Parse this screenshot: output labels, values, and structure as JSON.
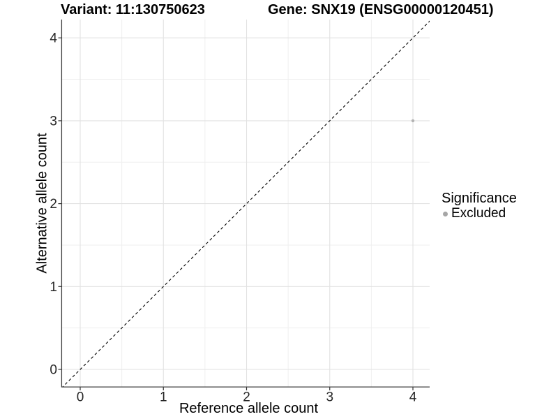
{
  "chart_data": {
    "type": "scatter",
    "title_left": "Variant: 11:130750623",
    "title_right": "Gene: SNX19 (ENSG00000120451)",
    "xlabel": "Reference allele count",
    "ylabel": "Alternative allele count",
    "xticks": [
      0,
      1,
      2,
      3,
      4
    ],
    "yticks": [
      0,
      1,
      2,
      3,
      4
    ],
    "xlim": [
      -0.22,
      4.2
    ],
    "ylim": [
      -0.21,
      4.22
    ],
    "grid": "major and minor, light gray, on white background",
    "minor_step": 0.5,
    "identity_line": {
      "equation": "y = x",
      "style": "dashed",
      "color": "#000000"
    },
    "points": [
      {
        "x": 4,
        "y": 3,
        "significance": "Excluded"
      }
    ],
    "legend": {
      "title": "Significance",
      "position": "right",
      "items": [
        {
          "label": "Excluded",
          "color": "#a6a6a6"
        }
      ]
    }
  },
  "style": {
    "point_color": "#b3b3b3",
    "legend_dot_color": "#a6a6a6",
    "major_grid_color": "#e2e2e2",
    "minor_grid_color": "#efefef",
    "axis_line_color": "#404040",
    "tick_mark_color": "#333333",
    "tick_label_color": "#262626",
    "background": "#ffffff"
  }
}
